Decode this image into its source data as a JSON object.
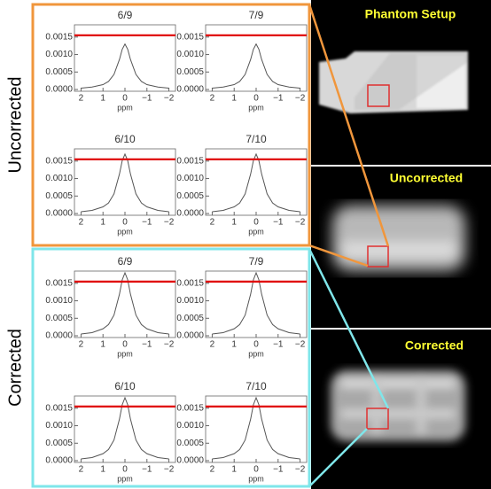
{
  "panels": [
    {
      "label": "Uncorrected",
      "color": "#f0963c"
    },
    {
      "label": "Corrected",
      "color": "#7fe6ea"
    }
  ],
  "images": [
    {
      "label": "Phantom Setup"
    },
    {
      "label": "Uncorrected"
    },
    {
      "label": "Corrected"
    }
  ],
  "chart_data": [
    {
      "type": "line",
      "title": "6/9",
      "x_label": "ppm",
      "x": [
        2,
        1.5,
        1,
        0.75,
        0.5,
        0.25,
        0.125,
        0,
        -0.125,
        -0.25,
        -0.5,
        -0.75,
        -1,
        -1.5,
        -2
      ],
      "series": [
        {
          "color": "#555555",
          "values": [
            4e-05,
            7e-05,
            0.00014,
            0.00023,
            0.00043,
            0.00086,
            0.00115,
            0.0013,
            0.00115,
            0.00086,
            0.00043,
            0.00023,
            0.00014,
            7e-05,
            4e-05
          ]
        }
      ],
      "reference_line": {
        "value": 0.00155,
        "color": "#e00000"
      },
      "xlim": [
        2.3,
        -2.3
      ],
      "ylim": [
        -5e-05,
        0.00185
      ],
      "xticks": [
        2,
        1,
        0,
        {
          "value": -1,
          "label": "−1"
        },
        {
          "value": -2,
          "label": "−2"
        }
      ],
      "yticks": [
        {
          "value": 0,
          "label": "0.0000"
        },
        {
          "value": 0.0005,
          "label": "0.0005"
        },
        {
          "value": 0.001,
          "label": "0.0010"
        },
        {
          "value": 0.0015,
          "label": "0.0015"
        }
      ]
    },
    {
      "type": "line",
      "title": "7/9",
      "x_label": "ppm",
      "x": [
        2,
        1.5,
        1,
        0.75,
        0.5,
        0.25,
        0.125,
        0,
        -0.125,
        -0.25,
        -0.5,
        -0.75,
        -1,
        -1.5,
        -2
      ],
      "series": [
        {
          "color": "#555555",
          "values": [
            4e-05,
            7e-05,
            0.00014,
            0.00023,
            0.00043,
            0.00086,
            0.00115,
            0.0013,
            0.00115,
            0.00086,
            0.00043,
            0.00023,
            0.00014,
            7e-05,
            4e-05
          ]
        }
      ],
      "reference_line": {
        "value": 0.00155,
        "color": "#e00000"
      },
      "xlim": [
        2.3,
        -2.3
      ],
      "ylim": [
        -5e-05,
        0.00185
      ],
      "xticks": [
        2,
        1,
        0,
        {
          "value": -1,
          "label": "−1"
        },
        {
          "value": -2,
          "label": "−2"
        }
      ],
      "yticks": [
        {
          "value": 0,
          "label": "0.0000"
        },
        {
          "value": 0.0005,
          "label": "0.0005"
        },
        {
          "value": 0.001,
          "label": "0.0010"
        },
        {
          "value": 0.0015,
          "label": "0.0015"
        }
      ]
    },
    {
      "type": "line",
      "title": "6/10",
      "x_label": "ppm",
      "x": [
        2,
        1.5,
        1,
        0.75,
        0.5,
        0.25,
        0.125,
        0,
        -0.125,
        -0.25,
        -0.5,
        -0.75,
        -1,
        -1.5,
        -2
      ],
      "series": [
        {
          "color": "#555555",
          "values": [
            5e-05,
            9e-05,
            0.00019,
            0.0003,
            0.00056,
            0.00113,
            0.00151,
            0.0017,
            0.00151,
            0.00113,
            0.00056,
            0.0003,
            0.00019,
            9e-05,
            5e-05
          ]
        }
      ],
      "reference_line": {
        "value": 0.00155,
        "color": "#e00000"
      },
      "xlim": [
        2.3,
        -2.3
      ],
      "ylim": [
        -5e-05,
        0.00185
      ],
      "xticks": [
        2,
        1,
        0,
        {
          "value": -1,
          "label": "−1"
        },
        {
          "value": -2,
          "label": "−2"
        }
      ],
      "yticks": [
        {
          "value": 0,
          "label": "0.0000"
        },
        {
          "value": 0.0005,
          "label": "0.0005"
        },
        {
          "value": 0.001,
          "label": "0.0010"
        },
        {
          "value": 0.0015,
          "label": "0.0015"
        }
      ]
    },
    {
      "type": "line",
      "title": "7/10",
      "x_label": "ppm",
      "x": [
        2,
        1.5,
        1,
        0.75,
        0.5,
        0.25,
        0.125,
        0,
        -0.125,
        -0.25,
        -0.5,
        -0.75,
        -1,
        -1.5,
        -2
      ],
      "series": [
        {
          "color": "#555555",
          "values": [
            5e-05,
            9e-05,
            0.00019,
            0.0003,
            0.00056,
            0.00113,
            0.00151,
            0.0017,
            0.00151,
            0.00113,
            0.00056,
            0.0003,
            0.00019,
            9e-05,
            5e-05
          ]
        }
      ],
      "reference_line": {
        "value": 0.00155,
        "color": "#e00000"
      },
      "xlim": [
        2.3,
        -2.3
      ],
      "ylim": [
        -5e-05,
        0.00185
      ],
      "xticks": [
        2,
        1,
        0,
        {
          "value": -1,
          "label": "−1"
        },
        {
          "value": -2,
          "label": "−2"
        }
      ],
      "yticks": [
        {
          "value": 0,
          "label": "0.0000"
        },
        {
          "value": 0.0005,
          "label": "0.0005"
        },
        {
          "value": 0.001,
          "label": "0.0010"
        },
        {
          "value": 0.0015,
          "label": "0.0015"
        }
      ]
    },
    {
      "type": "line",
      "title": "6/9",
      "x_label": "ppm",
      "x": [
        2,
        1.5,
        1,
        0.75,
        0.5,
        0.25,
        0.125,
        0,
        -0.125,
        -0.25,
        -0.5,
        -0.75,
        -1,
        -1.5,
        -2
      ],
      "series": [
        {
          "color": "#555555",
          "values": [
            5e-05,
            9e-05,
            0.0002,
            0.00032,
            0.00059,
            0.00119,
            0.0016,
            0.0018,
            0.0016,
            0.00119,
            0.00059,
            0.00032,
            0.0002,
            9e-05,
            5e-05
          ]
        }
      ],
      "reference_line": {
        "value": 0.00155,
        "color": "#e00000"
      },
      "xlim": [
        2.3,
        -2.3
      ],
      "ylim": [
        -5e-05,
        0.00185
      ],
      "xticks": [
        2,
        1,
        0,
        {
          "value": -1,
          "label": "−1"
        },
        {
          "value": -2,
          "label": "−2"
        }
      ],
      "yticks": [
        {
          "value": 0,
          "label": "0.0000"
        },
        {
          "value": 0.0005,
          "label": "0.0005"
        },
        {
          "value": 0.001,
          "label": "0.0010"
        },
        {
          "value": 0.0015,
          "label": "0.0015"
        }
      ]
    },
    {
      "type": "line",
      "title": "7/9",
      "x_label": "ppm",
      "x": [
        2,
        1.5,
        1,
        0.75,
        0.5,
        0.25,
        0.125,
        0,
        -0.125,
        -0.25,
        -0.5,
        -0.75,
        -1,
        -1.5,
        -2
      ],
      "series": [
        {
          "color": "#555555",
          "values": [
            5e-05,
            9e-05,
            0.0002,
            0.00032,
            0.00059,
            0.00119,
            0.0016,
            0.0018,
            0.0016,
            0.00119,
            0.00059,
            0.00032,
            0.0002,
            9e-05,
            5e-05
          ]
        }
      ],
      "reference_line": {
        "value": 0.00155,
        "color": "#e00000"
      },
      "xlim": [
        2.3,
        -2.3
      ],
      "ylim": [
        -5e-05,
        0.00185
      ],
      "xticks": [
        2,
        1,
        0,
        {
          "value": -1,
          "label": "−1"
        },
        {
          "value": -2,
          "label": "−2"
        }
      ],
      "yticks": [
        {
          "value": 0,
          "label": "0.0000"
        },
        {
          "value": 0.0005,
          "label": "0.0005"
        },
        {
          "value": 0.001,
          "label": "0.0010"
        },
        {
          "value": 0.0015,
          "label": "0.0015"
        }
      ]
    },
    {
      "type": "line",
      "title": "6/10",
      "x_label": "ppm",
      "x": [
        2,
        1.5,
        1,
        0.75,
        0.5,
        0.25,
        0.125,
        0,
        -0.125,
        -0.25,
        -0.5,
        -0.75,
        -1,
        -1.5,
        -2
      ],
      "series": [
        {
          "color": "#555555",
          "values": [
            5e-05,
            9e-05,
            0.0002,
            0.00032,
            0.00059,
            0.00119,
            0.0016,
            0.0018,
            0.0016,
            0.00119,
            0.00059,
            0.00032,
            0.0002,
            9e-05,
            5e-05
          ]
        }
      ],
      "reference_line": {
        "value": 0.00155,
        "color": "#e00000"
      },
      "xlim": [
        2.3,
        -2.3
      ],
      "ylim": [
        -5e-05,
        0.00185
      ],
      "xticks": [
        2,
        1,
        0,
        {
          "value": -1,
          "label": "−1"
        },
        {
          "value": -2,
          "label": "−2"
        }
      ],
      "yticks": [
        {
          "value": 0,
          "label": "0.0000"
        },
        {
          "value": 0.0005,
          "label": "0.0005"
        },
        {
          "value": 0.001,
          "label": "0.0010"
        },
        {
          "value": 0.0015,
          "label": "0.0015"
        }
      ]
    },
    {
      "type": "line",
      "title": "7/10",
      "x_label": "ppm",
      "x": [
        2,
        1.5,
        1,
        0.75,
        0.5,
        0.25,
        0.125,
        0,
        -0.125,
        -0.25,
        -0.5,
        -0.75,
        -1,
        -1.5,
        -2
      ],
      "series": [
        {
          "color": "#555555",
          "values": [
            5e-05,
            9e-05,
            0.0002,
            0.00032,
            0.00059,
            0.00119,
            0.0016,
            0.0018,
            0.0016,
            0.00119,
            0.00059,
            0.00032,
            0.0002,
            9e-05,
            5e-05
          ]
        }
      ],
      "reference_line": {
        "value": 0.00155,
        "color": "#e00000"
      },
      "xlim": [
        2.3,
        -2.3
      ],
      "ylim": [
        -5e-05,
        0.00185
      ],
      "xticks": [
        2,
        1,
        0,
        {
          "value": -1,
          "label": "−1"
        },
        {
          "value": -2,
          "label": "−2"
        }
      ],
      "yticks": [
        {
          "value": 0,
          "label": "0.0000"
        },
        {
          "value": 0.0005,
          "label": "0.0005"
        },
        {
          "value": 0.001,
          "label": "0.0010"
        },
        {
          "value": 0.0015,
          "label": "0.0015"
        }
      ]
    }
  ]
}
